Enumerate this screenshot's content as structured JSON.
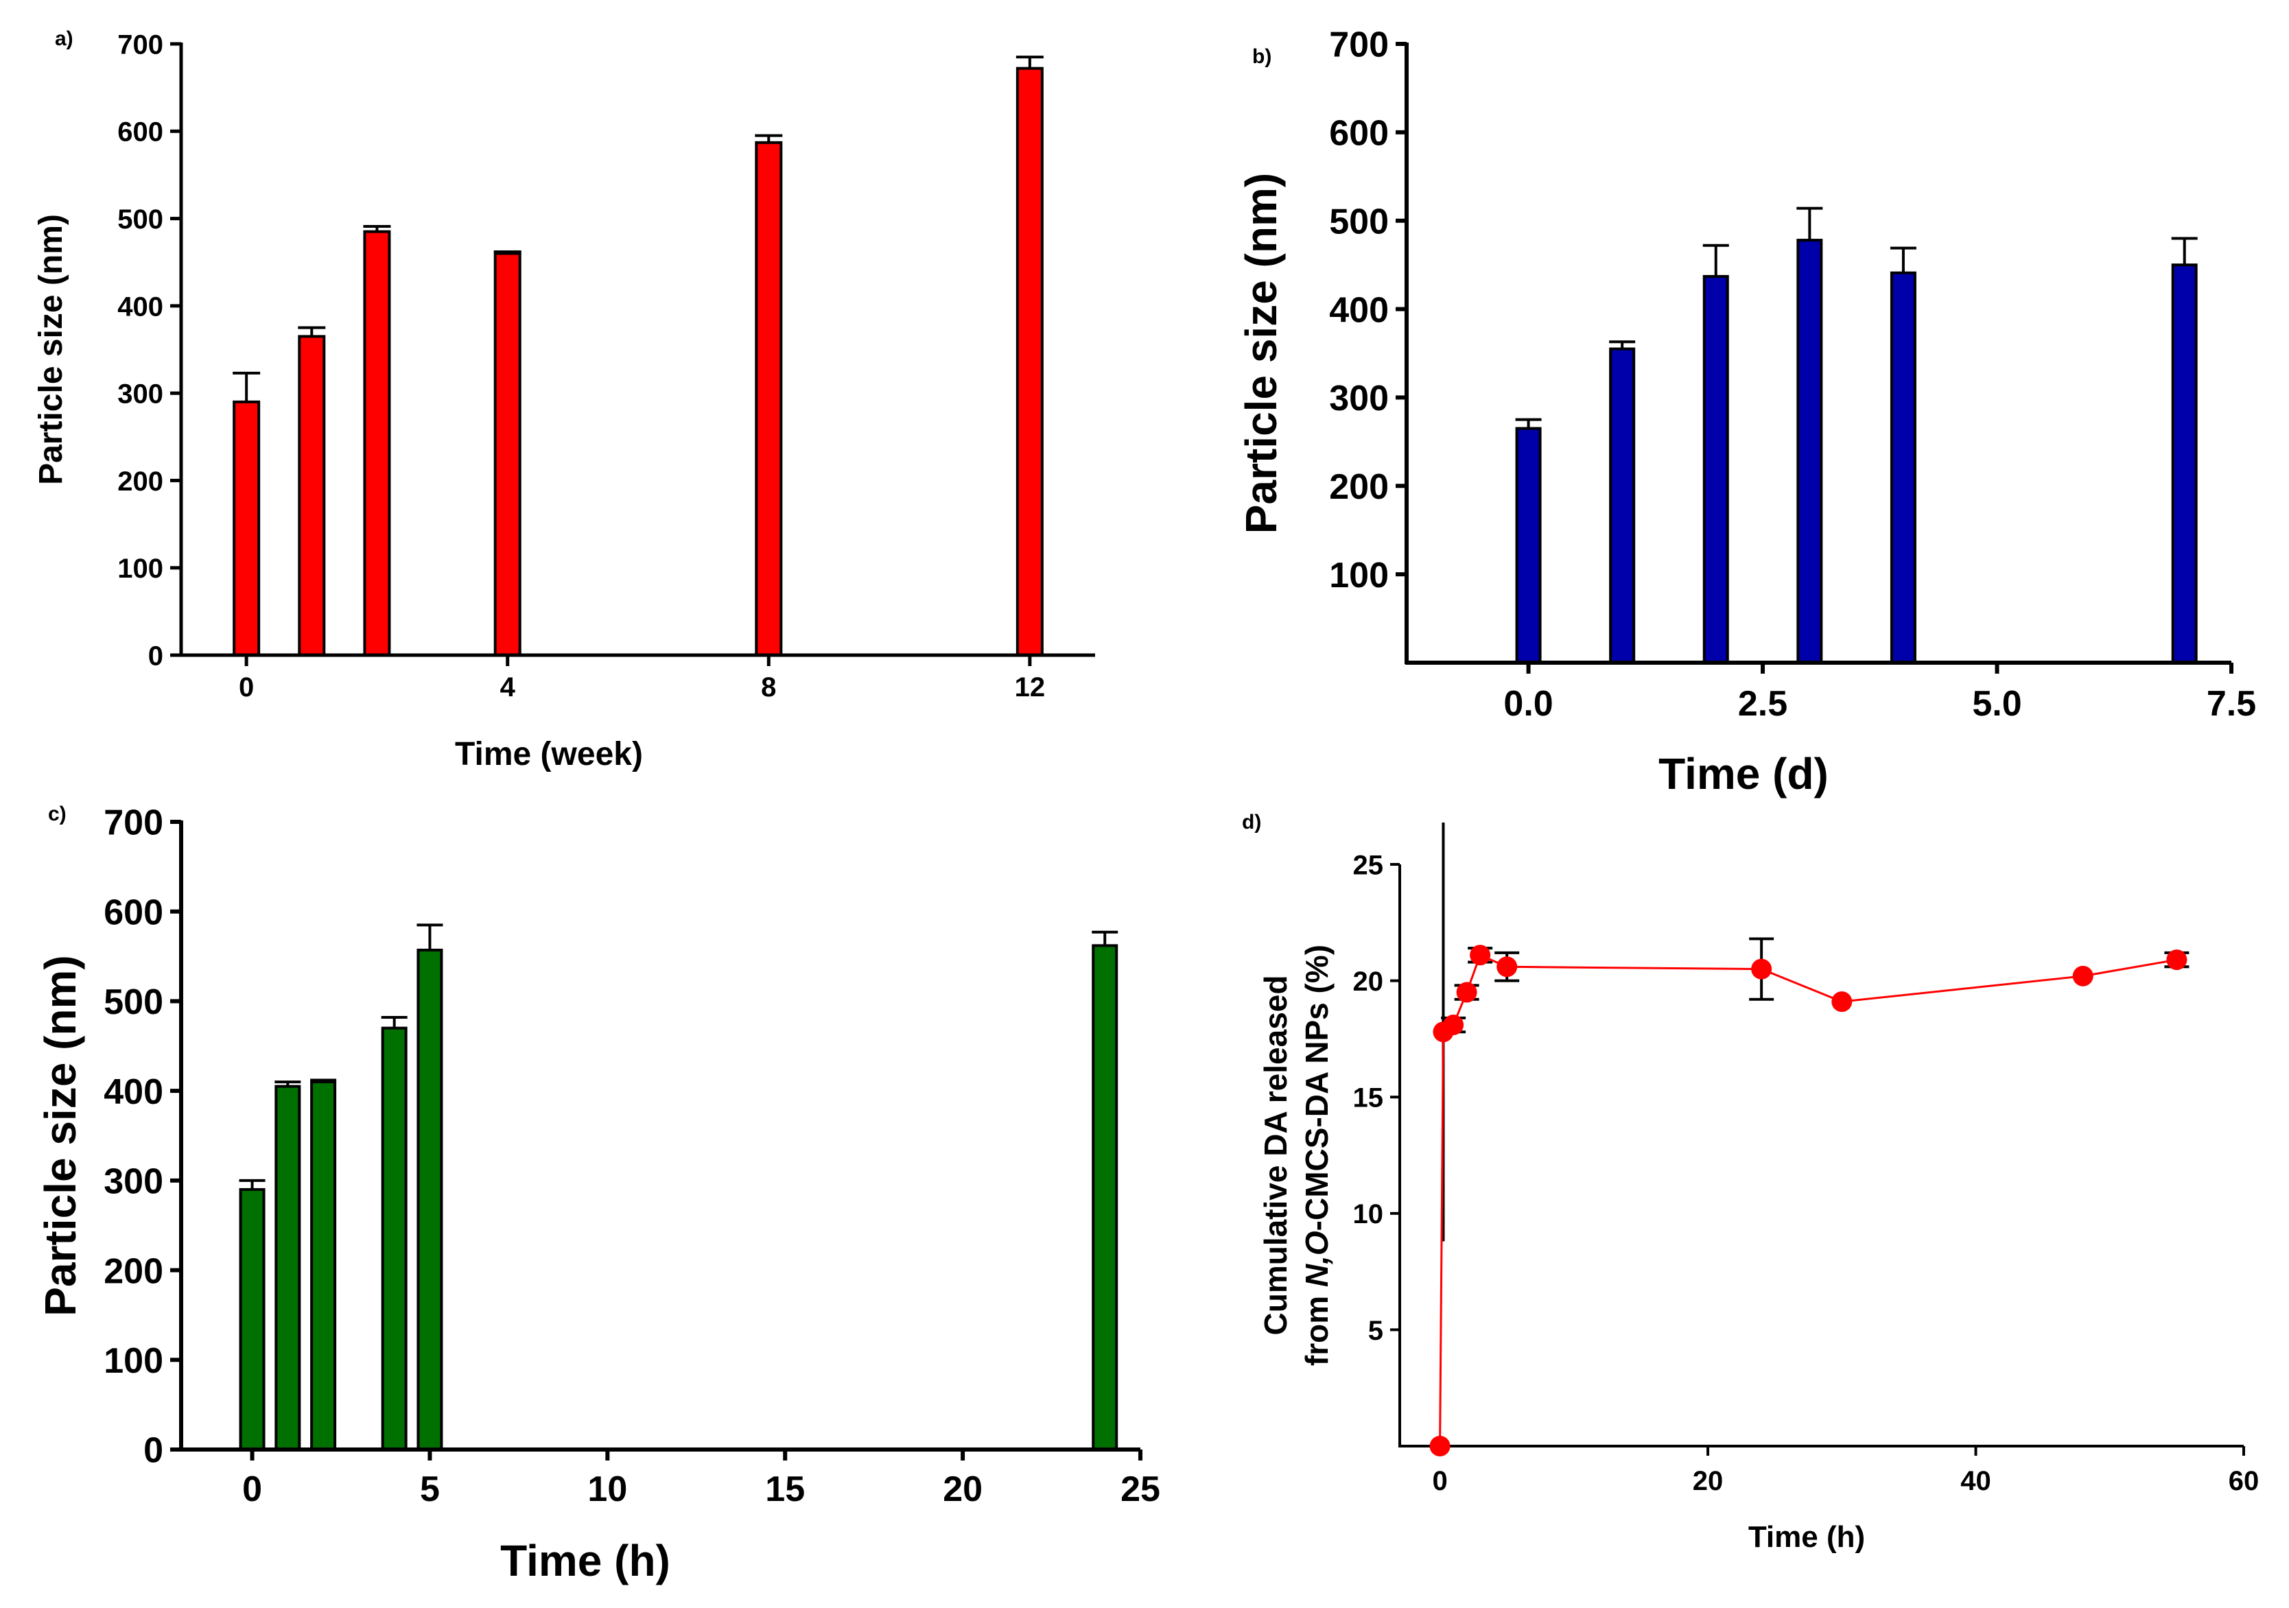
{
  "chart_data": [
    {
      "panel_label": "a)",
      "type": "bar",
      "color": "#ff0000",
      "x": [
        0,
        1,
        2,
        4,
        8,
        12
      ],
      "values": [
        290,
        365,
        485,
        460,
        587,
        672
      ],
      "errors": [
        33,
        10,
        6,
        2,
        8,
        13
      ],
      "xlabel": "Time (week)",
      "ylabel": "Particle size (nm)",
      "xlim": [
        -1,
        13
      ],
      "ylim": [
        0,
        700
      ],
      "xticks": [
        0,
        4,
        8,
        12
      ],
      "xtick_labels": [
        "0",
        "4",
        "8",
        "12"
      ],
      "yticks": [
        0,
        100,
        200,
        300,
        400,
        500,
        600,
        700
      ],
      "ytick_labels": [
        "0",
        "100",
        "200",
        "300",
        "400",
        "500",
        "600",
        "700"
      ]
    },
    {
      "panel_label": "b)",
      "type": "bar",
      "color": "#0000aa",
      "x": [
        0,
        1,
        2,
        3,
        4,
        7
      ],
      "values": [
        265,
        355,
        437,
        478,
        441,
        450
      ],
      "errors": [
        10,
        8,
        35,
        36,
        28,
        30
      ],
      "xlabel": "Time (d)",
      "ylabel": "Particle size (nm)",
      "xlim": [
        -1.3,
        7.5
      ],
      "ylim": [
        0,
        700
      ],
      "xticks": [
        0,
        2.5,
        5,
        7.5
      ],
      "xtick_labels": [
        "0.0",
        "2.5",
        "5.0",
        "7.5"
      ],
      "yticks": [
        100,
        200,
        300,
        400,
        500,
        600,
        700
      ],
      "ytick_labels": [
        "100",
        "200",
        "300",
        "400",
        "500",
        "600",
        "700"
      ]
    },
    {
      "panel_label": "c)",
      "type": "bar",
      "color": "#007000",
      "x": [
        0,
        1,
        2,
        4,
        5,
        24
      ],
      "values": [
        290,
        405,
        410,
        470,
        557,
        562
      ],
      "errors": [
        10,
        5,
        2,
        12,
        28,
        15
      ],
      "xlabel": "Time (h)",
      "ylabel": "Particle size (nm)",
      "xlim": [
        -2,
        25
      ],
      "ylim": [
        0,
        700
      ],
      "xticks": [
        0,
        5,
        10,
        15,
        20,
        25
      ],
      "xtick_labels": [
        "0",
        "5",
        "10",
        "15",
        "20",
        "25"
      ],
      "yticks": [
        0,
        100,
        200,
        300,
        400,
        500,
        600,
        700
      ],
      "ytick_labels": [
        "0",
        "100",
        "200",
        "300",
        "400",
        "500",
        "600",
        "700"
      ]
    },
    {
      "panel_label": "d)",
      "type": "line",
      "color": "#ff0000",
      "x": [
        0,
        0.25,
        1,
        2,
        3,
        5,
        24,
        30,
        48,
        55
      ],
      "values": [
        0,
        17.8,
        18.1,
        19.5,
        21.1,
        20.6,
        20.5,
        19.1,
        20.2,
        20.9
      ],
      "errors": [
        0,
        9,
        0.3,
        0.3,
        0.3,
        0.6,
        1.3,
        0.2,
        0.2,
        0.3
      ],
      "xlabel": "Time (h)",
      "ylabel_line1": "Cumulative DA released",
      "ylabel_line2_prefix": "from ",
      "ylabel_line2_italic": "N,O",
      "ylabel_line2_suffix": "-CMCS-DA NPs (%)",
      "xlim": [
        -3,
        60
      ],
      "ylim": [
        0,
        25
      ],
      "xticks": [
        0,
        20,
        40,
        60
      ],
      "xtick_labels": [
        "0",
        "20",
        "40",
        "60"
      ],
      "yticks": [
        5,
        10,
        15,
        20,
        25
      ],
      "ytick_labels": [
        "5",
        "10",
        "15",
        "20",
        "25"
      ]
    }
  ]
}
